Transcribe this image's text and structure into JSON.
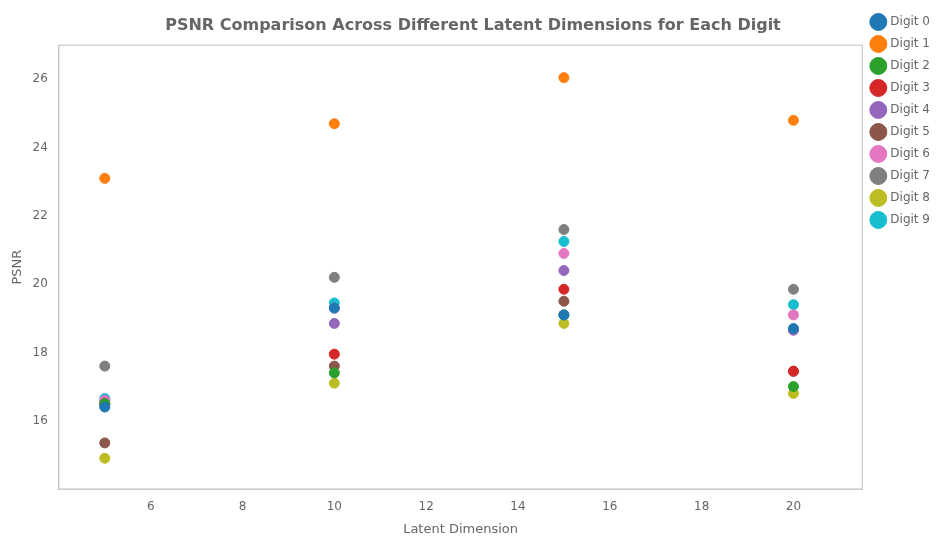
{
  "chart_data": {
    "type": "scatter",
    "title": "PSNR Comparison Across Different Latent Dimensions for Each Digit",
    "xlabel": "Latent Dimension",
    "ylabel": "PSNR",
    "x": [
      5,
      10,
      15,
      20
    ],
    "series": [
      {
        "name": "Digit 0",
        "color": "#1f77b4",
        "values": [
          16.4,
          19.3,
          19.1,
          18.7
        ]
      },
      {
        "name": "Digit 1",
        "color": "#ff7f0e",
        "values": [
          23.1,
          24.7,
          26.05,
          24.8
        ]
      },
      {
        "name": "Digit 2",
        "color": "#2ca02c",
        "values": [
          16.5,
          17.4,
          19.1,
          17.0
        ]
      },
      {
        "name": "Digit 3",
        "color": "#d62728",
        "values": [
          16.5,
          17.95,
          19.85,
          17.45
        ]
      },
      {
        "name": "Digit 4",
        "color": "#9467bd",
        "values": [
          16.5,
          18.85,
          20.4,
          18.65
        ]
      },
      {
        "name": "Digit 5",
        "color": "#8c564b",
        "values": [
          15.35,
          17.6,
          19.5,
          17.45
        ]
      },
      {
        "name": "Digit 6",
        "color": "#e377c2",
        "values": [
          16.6,
          19.3,
          20.9,
          19.1
        ]
      },
      {
        "name": "Digit 7",
        "color": "#7f7f7f",
        "values": [
          17.6,
          20.2,
          21.6,
          19.85
        ]
      },
      {
        "name": "Digit 8",
        "color": "#bcbd22",
        "values": [
          14.9,
          17.1,
          18.85,
          16.8
        ]
      },
      {
        "name": "Digit 9",
        "color": "#17becf",
        "values": [
          16.65,
          19.45,
          21.25,
          19.4
        ]
      }
    ],
    "xlim": [
      4.0,
      21.5
    ],
    "xticks": [
      6,
      8,
      10,
      12,
      14,
      16,
      18,
      20
    ],
    "ylim": [
      14.0,
      27.0
    ],
    "yticks": [
      16,
      18,
      20,
      22,
      24,
      26
    ],
    "grid": false,
    "legend": "upper right"
  }
}
